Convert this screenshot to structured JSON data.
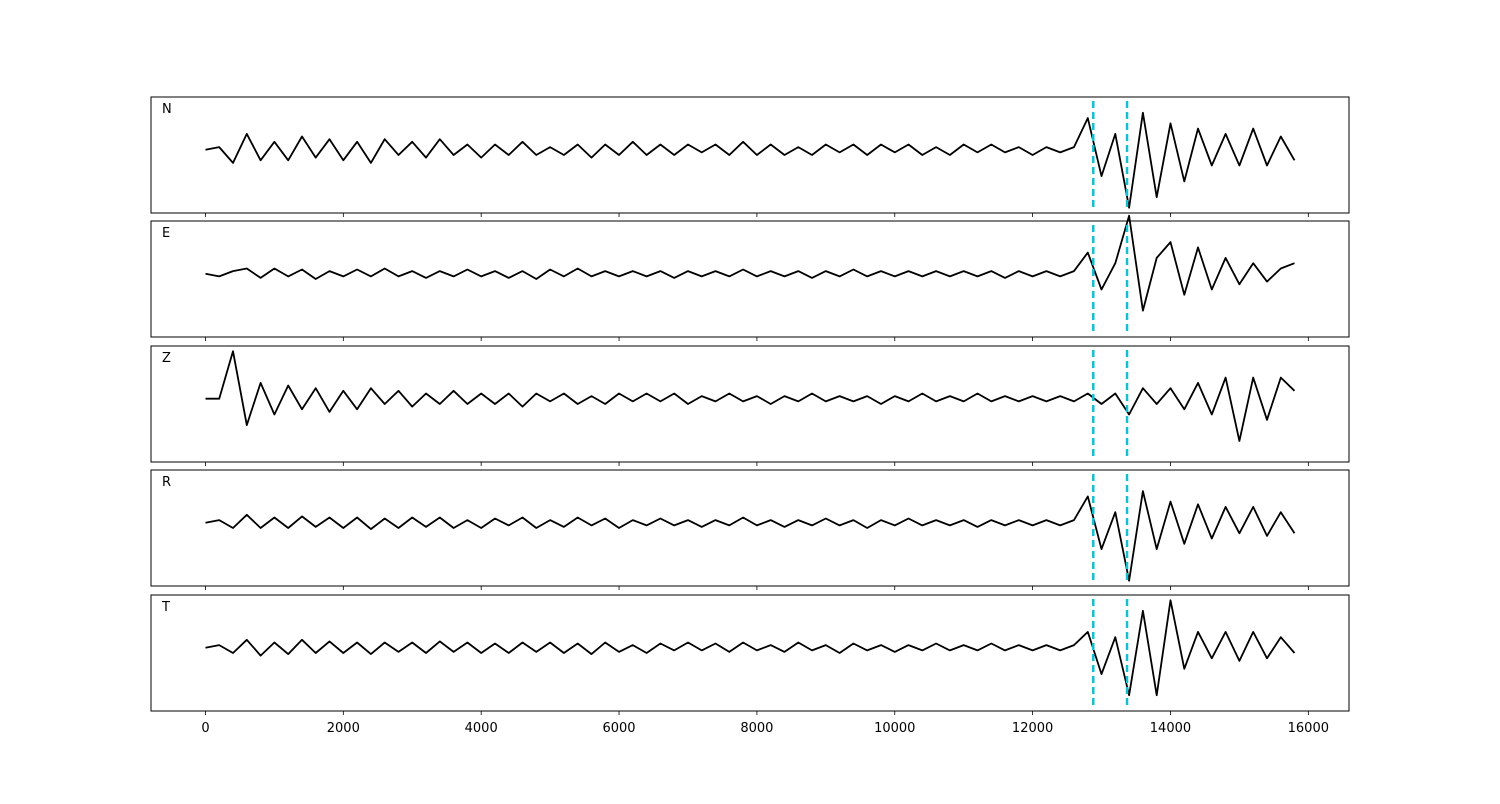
{
  "chart_data": {
    "type": "line",
    "x": [
      0,
      200,
      400,
      600,
      800,
      1000,
      1200,
      1400,
      1600,
      1800,
      2000,
      2200,
      2400,
      2600,
      2800,
      3000,
      3200,
      3400,
      3600,
      3800,
      4000,
      4200,
      4400,
      4600,
      4800,
      5000,
      5200,
      5400,
      5600,
      5800,
      6000,
      6200,
      6400,
      6600,
      6800,
      7000,
      7200,
      7400,
      7600,
      7800,
      8000,
      8200,
      8400,
      8600,
      8800,
      9000,
      9200,
      9400,
      9600,
      9800,
      10000,
      10200,
      10400,
      10600,
      10800,
      11000,
      11200,
      11400,
      11600,
      11800,
      12000,
      12200,
      12400,
      12600,
      12800,
      13000,
      13200,
      13400,
      13600,
      13800,
      14000,
      14200,
      14400,
      14600,
      14800,
      15000,
      15200,
      15400,
      15600,
      15800
    ],
    "xlim": [
      -790,
      16590
    ],
    "xticks": [
      0,
      2000,
      4000,
      6000,
      8000,
      10000,
      12000,
      14000,
      16000
    ],
    "ylim": [
      -1.2,
      1.0
    ],
    "vlines": [
      12880,
      13370
    ],
    "vline_color": "#17becf",
    "series": [
      {
        "name": "N",
        "color": "#000000",
        "values": [
          0,
          0.05,
          -0.25,
          0.3,
          -0.2,
          0.15,
          -0.2,
          0.25,
          -0.15,
          0.2,
          -0.2,
          0.15,
          -0.25,
          0.2,
          -0.1,
          0.15,
          -0.15,
          0.2,
          -0.1,
          0.1,
          -0.15,
          0.1,
          -0.1,
          0.15,
          -0.1,
          0.05,
          -0.1,
          0.1,
          -0.15,
          0.1,
          -0.1,
          0.15,
          -0.1,
          0.1,
          -0.1,
          0.1,
          -0.05,
          0.1,
          -0.1,
          0.15,
          -0.1,
          0.1,
          -0.1,
          0.05,
          -0.1,
          0.1,
          -0.05,
          0.1,
          -0.1,
          0.1,
          -0.05,
          0.1,
          -0.1,
          0.05,
          -0.1,
          0.1,
          -0.05,
          0.1,
          -0.05,
          0.05,
          -0.1,
          0.05,
          -0.05,
          0.05,
          0.6,
          -0.5,
          0.3,
          -1.1,
          0.7,
          -0.9,
          0.5,
          -0.6,
          0.4,
          -0.3,
          0.3,
          -0.3,
          0.4,
          -0.3,
          0.25,
          -0.2
        ]
      },
      {
        "name": "E",
        "color": "#000000",
        "values": [
          0,
          -0.05,
          0.05,
          0.1,
          -0.08,
          0.1,
          -0.05,
          0.08,
          -0.1,
          0.05,
          -0.05,
          0.08,
          -0.05,
          0.1,
          -0.05,
          0.05,
          -0.08,
          0.05,
          -0.05,
          0.08,
          -0.05,
          0.05,
          -0.08,
          0.05,
          -0.1,
          0.08,
          -0.05,
          0.1,
          -0.05,
          0.05,
          -0.05,
          0.05,
          -0.05,
          0.05,
          -0.08,
          0.05,
          -0.05,
          0.05,
          -0.05,
          0.08,
          -0.05,
          0.05,
          -0.05,
          0.05,
          -0.08,
          0.05,
          -0.05,
          0.08,
          -0.05,
          0.05,
          -0.05,
          0.05,
          -0.05,
          0.05,
          -0.05,
          0.05,
          -0.05,
          0.05,
          -0.08,
          0.05,
          -0.05,
          0.05,
          -0.05,
          0.05,
          0.4,
          -0.3,
          0.2,
          1.1,
          -0.7,
          0.3,
          0.6,
          -0.4,
          0.5,
          -0.3,
          0.3,
          -0.2,
          0.2,
          -0.15,
          0.1,
          0.2
        ]
      },
      {
        "name": "Z",
        "color": "#000000",
        "values": [
          0,
          0,
          0.9,
          -0.5,
          0.3,
          -0.3,
          0.25,
          -0.2,
          0.2,
          -0.25,
          0.15,
          -0.2,
          0.2,
          -0.1,
          0.15,
          -0.15,
          0.1,
          -0.1,
          0.15,
          -0.1,
          0.1,
          -0.1,
          0.1,
          -0.15,
          0.1,
          -0.05,
          0.1,
          -0.1,
          0.05,
          -0.1,
          0.1,
          -0.05,
          0.1,
          -0.05,
          0.1,
          -0.1,
          0.05,
          -0.05,
          0.1,
          -0.05,
          0.05,
          -0.1,
          0.05,
          -0.05,
          0.1,
          -0.05,
          0.05,
          -0.05,
          0.05,
          -0.1,
          0.05,
          -0.05,
          0.1,
          -0.05,
          0.05,
          -0.05,
          0.1,
          -0.05,
          0.05,
          -0.05,
          0.05,
          -0.05,
          0.05,
          -0.05,
          0.1,
          -0.1,
          0.1,
          -0.3,
          0.2,
          -0.1,
          0.2,
          -0.2,
          0.3,
          -0.3,
          0.4,
          -0.8,
          0.4,
          -0.4,
          0.4,
          0.15
        ]
      },
      {
        "name": "R",
        "color": "#000000",
        "values": [
          0,
          0.05,
          -0.1,
          0.15,
          -0.1,
          0.1,
          -0.1,
          0.12,
          -0.08,
          0.1,
          -0.1,
          0.1,
          -0.12,
          0.08,
          -0.1,
          0.1,
          -0.08,
          0.1,
          -0.1,
          0.05,
          -0.1,
          0.08,
          -0.05,
          0.1,
          -0.1,
          0.05,
          -0.08,
          0.1,
          -0.05,
          0.08,
          -0.1,
          0.05,
          -0.05,
          0.08,
          -0.05,
          0.05,
          -0.08,
          0.05,
          -0.05,
          0.1,
          -0.05,
          0.05,
          -0.08,
          0.05,
          -0.05,
          0.08,
          -0.05,
          0.05,
          -0.1,
          0.05,
          -0.05,
          0.08,
          -0.05,
          0.05,
          -0.05,
          0.05,
          -0.08,
          0.05,
          -0.05,
          0.05,
          -0.05,
          0.05,
          -0.05,
          0.05,
          0.5,
          -0.5,
          0.2,
          -1.1,
          0.6,
          -0.5,
          0.4,
          -0.4,
          0.35,
          -0.3,
          0.3,
          -0.2,
          0.3,
          -0.25,
          0.2,
          -0.2
        ]
      },
      {
        "name": "T",
        "color": "#000000",
        "values": [
          0,
          0.05,
          -0.1,
          0.15,
          -0.15,
          0.1,
          -0.12,
          0.15,
          -0.1,
          0.12,
          -0.1,
          0.1,
          -0.12,
          0.1,
          -0.08,
          0.1,
          -0.1,
          0.12,
          -0.08,
          0.1,
          -0.1,
          0.08,
          -0.1,
          0.1,
          -0.08,
          0.1,
          -0.1,
          0.08,
          -0.12,
          0.1,
          -0.08,
          0.05,
          -0.1,
          0.08,
          -0.05,
          0.1,
          -0.05,
          0.08,
          -0.08,
          0.1,
          -0.05,
          0.05,
          -0.08,
          0.1,
          -0.05,
          0.05,
          -0.1,
          0.08,
          -0.05,
          0.05,
          -0.08,
          0.05,
          -0.05,
          0.08,
          -0.05,
          0.05,
          -0.05,
          0.08,
          -0.05,
          0.05,
          -0.05,
          0.05,
          -0.05,
          0.05,
          0.3,
          -0.5,
          0.2,
          -0.9,
          0.7,
          -0.9,
          0.9,
          -0.4,
          0.3,
          -0.2,
          0.3,
          -0.25,
          0.3,
          -0.2,
          0.2,
          -0.1
        ]
      }
    ]
  }
}
